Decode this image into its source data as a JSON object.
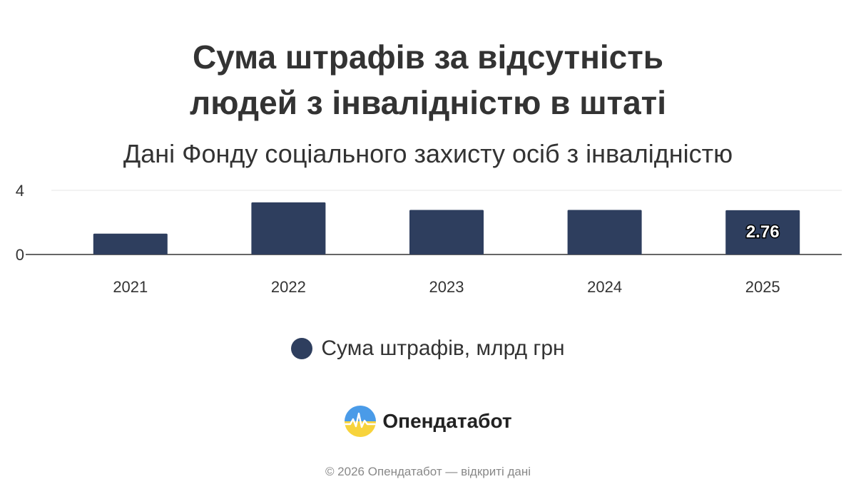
{
  "title_line1": "Сума штрафів за відсутність",
  "title_line2": "людей з інвалідністю в штаті",
  "subtitle": "Дані Фонду соціального захисту осіб з інвалідністю",
  "brand": {
    "name": "Опендатабот",
    "logo_icon": "opendatabot-logo-icon"
  },
  "footer": "© 2026 Опендатабот — відкриті дані",
  "colors": {
    "bar": "#2e3e5e",
    "grid": "#e6e6e6",
    "axis": "#333333",
    "text": "#333333"
  },
  "chart_data": {
    "type": "bar",
    "categories": [
      "2021",
      "2022",
      "2023",
      "2024",
      "2025"
    ],
    "series": [
      {
        "name": "Сума штрафів, млрд грн",
        "values": [
          1.3,
          3.25,
          2.78,
          2.78,
          2.76
        ]
      }
    ],
    "ylim": [
      0,
      4
    ],
    "yticks": [
      0,
      4
    ],
    "data_labels": [
      null,
      null,
      null,
      null,
      "2.76"
    ],
    "grid": true,
    "legend": "bottom-center"
  }
}
